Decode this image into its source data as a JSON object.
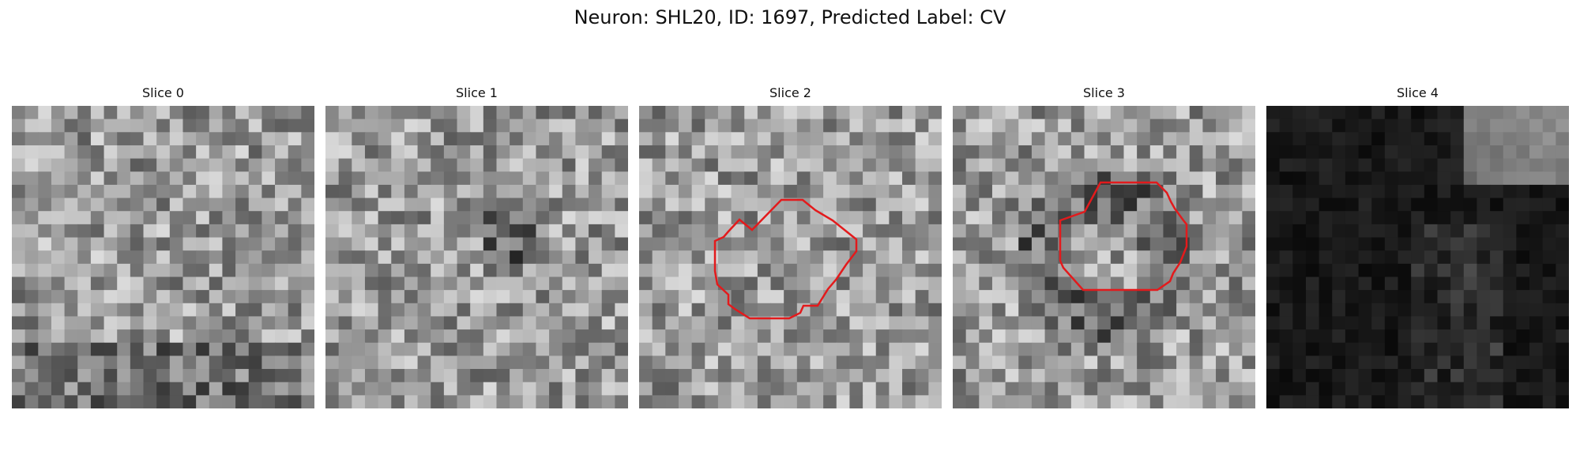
{
  "figure": {
    "title": "Neuron: SHL20, ID: 1697, Predicted Label: CV"
  },
  "slices": [
    {
      "label": "Slice 0",
      "has_roi": false,
      "mode": "normal"
    },
    {
      "label": "Slice 1",
      "has_roi": false,
      "mode": "normal"
    },
    {
      "label": "Slice 2",
      "has_roi": true,
      "mode": "normal"
    },
    {
      "label": "Slice 3",
      "has_roi": true,
      "mode": "normal"
    },
    {
      "label": "Slice 4",
      "has_roi": false,
      "mode": "dark"
    }
  ],
  "colors": {
    "roi_outline": "#e31a1c",
    "background": "#ffffff"
  }
}
